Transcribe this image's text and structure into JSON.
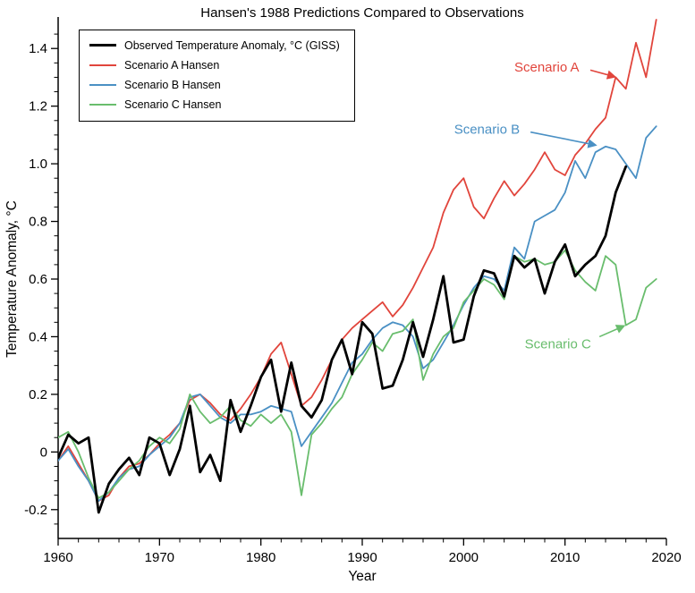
{
  "chart_data": {
    "type": "line",
    "title": "Hansen's 1988 Predictions Compared to Observations",
    "xlabel": "Year",
    "ylabel": "Temperature Anomaly, °C",
    "xlim": [
      1960,
      2020
    ],
    "ylim": [
      -0.3,
      1.5
    ],
    "xticks": [
      1960,
      1970,
      1980,
      1990,
      2000,
      2010,
      2020
    ],
    "yticks": [
      -0.2,
      0,
      0.2,
      0.4,
      0.6,
      0.8,
      1.0,
      1.2,
      1.4
    ],
    "ytick_labels": [
      "-0.2",
      "0",
      "0.2",
      "0.4",
      "0.6",
      "0.8",
      "1.0",
      "1.2",
      "1.4"
    ],
    "legend_position": "top-left",
    "grid": false,
    "series": [
      {
        "name": "observed",
        "label": "Observed Temperature Anomaly, °C (GISS)",
        "color": "#000000",
        "width": 2.8,
        "x_start": 1960,
        "values": [
          -0.02,
          0.06,
          0.03,
          0.05,
          -0.21,
          -0.11,
          -0.06,
          -0.02,
          -0.08,
          0.05,
          0.03,
          -0.08,
          0.01,
          0.16,
          -0.07,
          -0.01,
          -0.1,
          0.18,
          0.07,
          0.16,
          0.26,
          0.32,
          0.14,
          0.31,
          0.16,
          0.12,
          0.18,
          0.32,
          0.39,
          0.27,
          0.45,
          0.41,
          0.22,
          0.23,
          0.32,
          0.45,
          0.33,
          0.46,
          0.61,
          0.38,
          0.39,
          0.54,
          0.63,
          0.62,
          0.54,
          0.68,
          0.64,
          0.67,
          0.55,
          0.66,
          0.72,
          0.61,
          0.65,
          0.68,
          0.75,
          0.9,
          0.99
        ]
      },
      {
        "name": "scenario-a",
        "label": "Scenario A Hansen",
        "color": "#e1453c",
        "width": 1.8,
        "x_start": 1960,
        "values": [
          -0.03,
          0.02,
          -0.04,
          -0.1,
          -0.17,
          -0.15,
          -0.09,
          -0.05,
          -0.04,
          -0.01,
          0.03,
          0.06,
          0.1,
          0.18,
          0.2,
          0.17,
          0.13,
          0.11,
          0.15,
          0.2,
          0.26,
          0.34,
          0.38,
          0.27,
          0.16,
          0.19,
          0.25,
          0.32,
          0.39,
          0.43,
          0.46,
          0.49,
          0.52,
          0.47,
          0.51,
          0.57,
          0.64,
          0.71,
          0.83,
          0.91,
          0.95,
          0.85,
          0.81,
          0.88,
          0.94,
          0.89,
          0.93,
          0.98,
          1.04,
          0.98,
          0.96,
          1.03,
          1.07,
          1.12,
          1.16,
          1.3,
          1.26,
          1.42,
          1.3,
          1.5
        ]
      },
      {
        "name": "scenario-b",
        "label": "Scenario B Hansen",
        "color": "#4a90c4",
        "width": 1.8,
        "x_start": 1960,
        "values": [
          -0.03,
          0.01,
          -0.05,
          -0.1,
          -0.17,
          -0.14,
          -0.09,
          -0.06,
          -0.05,
          -0.01,
          0.02,
          0.05,
          0.1,
          0.19,
          0.2,
          0.16,
          0.12,
          0.1,
          0.13,
          0.13,
          0.14,
          0.16,
          0.15,
          0.14,
          0.02,
          0.07,
          0.12,
          0.17,
          0.24,
          0.31,
          0.34,
          0.39,
          0.43,
          0.45,
          0.44,
          0.4,
          0.29,
          0.32,
          0.38,
          0.44,
          0.51,
          0.57,
          0.61,
          0.6,
          0.56,
          0.71,
          0.67,
          0.8,
          0.82,
          0.84,
          0.9,
          1.01,
          0.95,
          1.04,
          1.06,
          1.05,
          1.0,
          0.95,
          1.09,
          1.13
        ]
      },
      {
        "name": "scenario-c",
        "label": "Scenario C Hansen",
        "color": "#69bd6d",
        "width": 1.8,
        "x_start": 1960,
        "values": [
          0.05,
          0.07,
          0.0,
          -0.09,
          -0.16,
          -0.14,
          -0.1,
          -0.06,
          -0.03,
          0.02,
          0.05,
          0.03,
          0.08,
          0.2,
          0.14,
          0.1,
          0.12,
          0.16,
          0.11,
          0.09,
          0.13,
          0.1,
          0.13,
          0.07,
          -0.15,
          0.06,
          0.1,
          0.15,
          0.19,
          0.27,
          0.32,
          0.38,
          0.35,
          0.41,
          0.42,
          0.46,
          0.25,
          0.34,
          0.4,
          0.43,
          0.52,
          0.56,
          0.6,
          0.58,
          0.53,
          0.68,
          0.66,
          0.67,
          0.65,
          0.66,
          0.7,
          0.63,
          0.59,
          0.56,
          0.68,
          0.65,
          0.44,
          0.46,
          0.57,
          0.6
        ]
      }
    ],
    "annotations": [
      {
        "text": "Scenario A",
        "color": "#e1453c",
        "x": 2008.2,
        "y": 1.335,
        "arrow_from": [
          2012.5,
          1.325
        ],
        "arrow_to": [
          2014.9,
          1.302
        ]
      },
      {
        "text": "Scenario B",
        "color": "#4a90c4",
        "x": 2002.3,
        "y": 1.12,
        "arrow_from": [
          2006.6,
          1.11
        ],
        "arrow_to": [
          2013.0,
          1.065
        ]
      },
      {
        "text": "Scenario C",
        "color": "#69bd6d",
        "x": 2009.3,
        "y": 0.375,
        "arrow_from": [
          2013.4,
          0.4
        ],
        "arrow_to": [
          2015.8,
          0.437
        ]
      }
    ]
  }
}
